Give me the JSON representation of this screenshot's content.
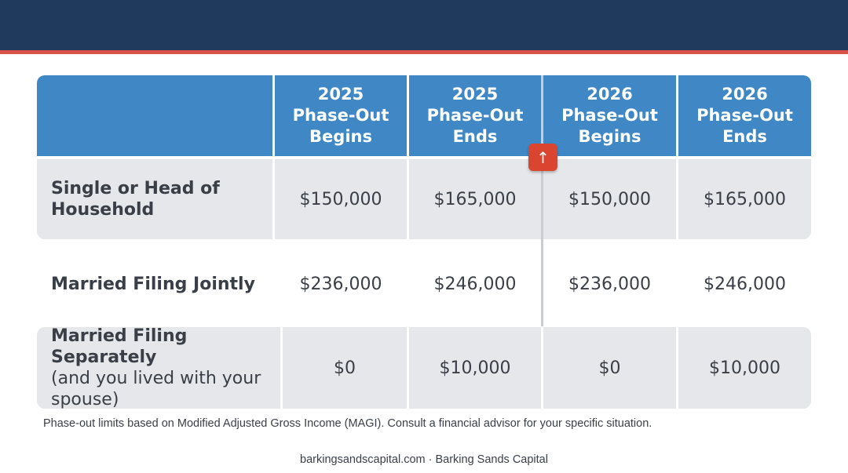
{
  "header": {
    "columns": [
      {
        "year": "2025",
        "line2": "Phase-Out",
        "line3": "Begins"
      },
      {
        "year": "2025",
        "line2": "Phase-Out",
        "line3": "Ends"
      },
      {
        "year": "2026",
        "line2": "Phase-Out",
        "line3": "Begins"
      },
      {
        "year": "2026",
        "line2": "Phase-Out",
        "line3": "Ends"
      }
    ]
  },
  "rows": [
    {
      "label": "Single or Head of Household",
      "label_sub": "",
      "values": [
        "$150,000",
        "$165,000",
        "$150,000",
        "$165,000"
      ]
    },
    {
      "label": "Married Filing Jointly",
      "label_sub": "",
      "values": [
        "$236,000",
        "$246,000",
        "$236,000",
        "$246,000"
      ]
    },
    {
      "label": "Married Filing Separately",
      "label_sub": "(and you lived with your spouse)",
      "values": [
        "$0",
        "$10,000",
        "$0",
        "$10,000"
      ]
    }
  ],
  "marker_icon": "up-arrow-icon",
  "footnote": "Phase-out limits based on Modified Adjusted Gross Income (MAGI). Consult a financial advisor for your specific situation.",
  "footer": "barkingsandscapital.com · Barking Sands Capital",
  "colors": {
    "header_bg": "#3f88c5",
    "top_bar": "#1f3a5c",
    "accent": "#d9534a",
    "row_shade": "#e5e7ea"
  }
}
